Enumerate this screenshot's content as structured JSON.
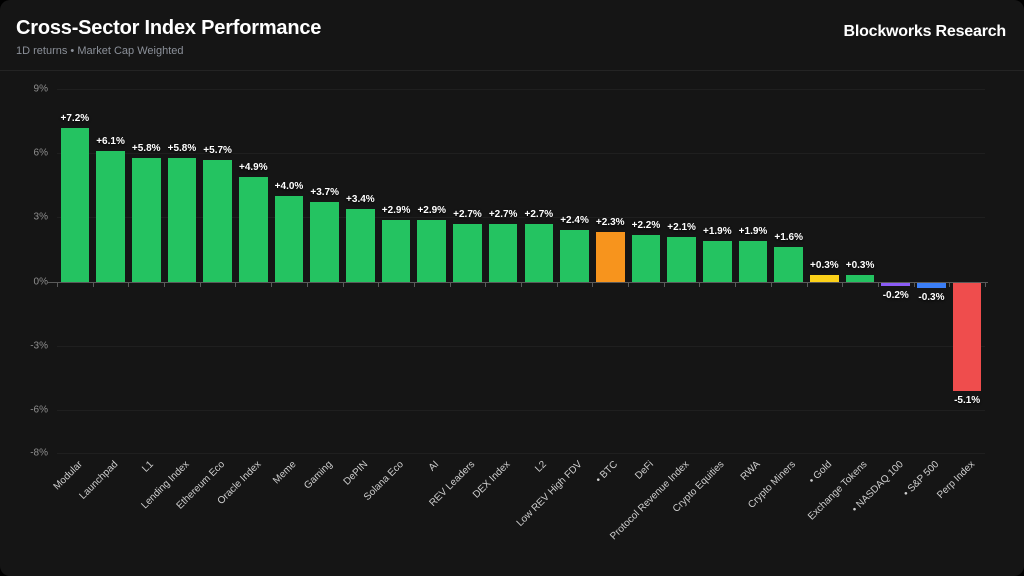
{
  "header": {
    "title": "Cross-Sector Index Performance",
    "subtitle": "1D returns • Market Cap Weighted",
    "brand": "Blockworks Research"
  },
  "colors": {
    "background": "#151515",
    "grid": "#1f1f1f",
    "axis": "#5a5a5a",
    "green": "#24c361",
    "orange": "#f7941d",
    "yellow": "#fcd119",
    "purple": "#8b5cf6",
    "blue": "#3b7ef6",
    "red": "#ef4d4d"
  },
  "chart_data": {
    "type": "bar",
    "title": "Cross-Sector Index Performance",
    "subtitle": "1D returns • Market Cap Weighted",
    "xlabel": "",
    "ylabel": "",
    "ylim": [
      -8,
      9
    ],
    "grid": true,
    "legend": false,
    "yticks": [
      {
        "value": 9,
        "label": "9%"
      },
      {
        "value": 6,
        "label": "6%"
      },
      {
        "value": 3,
        "label": "3%"
      },
      {
        "value": 0,
        "label": "0%"
      },
      {
        "value": -3,
        "label": "-3%"
      },
      {
        "value": -6,
        "label": "-6%"
      },
      {
        "value": -8,
        "label": "-8%"
      }
    ],
    "bars": [
      {
        "label": "Modular",
        "value": 7.2,
        "display": "+7.2%",
        "color": "#24c361",
        "dot": false
      },
      {
        "label": "Launchpad",
        "value": 6.1,
        "display": "+6.1%",
        "color": "#24c361",
        "dot": false
      },
      {
        "label": "L1",
        "value": 5.8,
        "display": "+5.8%",
        "color": "#24c361",
        "dot": false
      },
      {
        "label": "Lending Index",
        "value": 5.8,
        "display": "+5.8%",
        "color": "#24c361",
        "dot": false
      },
      {
        "label": "Ethereum Eco",
        "value": 5.7,
        "display": "+5.7%",
        "color": "#24c361",
        "dot": false
      },
      {
        "label": "Oracle Index",
        "value": 4.9,
        "display": "+4.9%",
        "color": "#24c361",
        "dot": false
      },
      {
        "label": "Meme",
        "value": 4.0,
        "display": "+4.0%",
        "color": "#24c361",
        "dot": false
      },
      {
        "label": "Gaming",
        "value": 3.7,
        "display": "+3.7%",
        "color": "#24c361",
        "dot": false
      },
      {
        "label": "DePIN",
        "value": 3.4,
        "display": "+3.4%",
        "color": "#24c361",
        "dot": false
      },
      {
        "label": "Solana Eco",
        "value": 2.9,
        "display": "+2.9%",
        "color": "#24c361",
        "dot": false
      },
      {
        "label": "AI",
        "value": 2.9,
        "display": "+2.9%",
        "color": "#24c361",
        "dot": false
      },
      {
        "label": "REV Leaders",
        "value": 2.7,
        "display": "+2.7%",
        "color": "#24c361",
        "dot": false
      },
      {
        "label": "DEX Index",
        "value": 2.7,
        "display": "+2.7%",
        "color": "#24c361",
        "dot": false
      },
      {
        "label": "L2",
        "value": 2.7,
        "display": "+2.7%",
        "color": "#24c361",
        "dot": false
      },
      {
        "label": "Low REV High FDV",
        "value": 2.4,
        "display": "+2.4%",
        "color": "#24c361",
        "dot": false
      },
      {
        "label": "BTC",
        "value": 2.3,
        "display": "+2.3%",
        "color": "#f7941d",
        "dot": true
      },
      {
        "label": "DeFi",
        "value": 2.2,
        "display": "+2.2%",
        "color": "#24c361",
        "dot": false
      },
      {
        "label": "Protocol Revenue Index",
        "value": 2.1,
        "display": "+2.1%",
        "color": "#24c361",
        "dot": false
      },
      {
        "label": "Crypto Equities",
        "value": 1.9,
        "display": "+1.9%",
        "color": "#24c361",
        "dot": false
      },
      {
        "label": "RWA",
        "value": 1.9,
        "display": "+1.9%",
        "color": "#24c361",
        "dot": false
      },
      {
        "label": "Crypto Miners",
        "value": 1.6,
        "display": "+1.6%",
        "color": "#24c361",
        "dot": false
      },
      {
        "label": "Gold",
        "value": 0.3,
        "display": "+0.3%",
        "color": "#fcd119",
        "dot": true
      },
      {
        "label": "Exchange Tokens",
        "value": 0.3,
        "display": "+0.3%",
        "color": "#24c361",
        "dot": false
      },
      {
        "label": "NASDAQ 100",
        "value": -0.2,
        "display": "-0.2%",
        "color": "#8b5cf6",
        "dot": true
      },
      {
        "label": "S&P 500",
        "value": -0.3,
        "display": "-0.3%",
        "color": "#3b7ef6",
        "dot": true
      },
      {
        "label": "Perp Index",
        "value": -5.1,
        "display": "-5.1%",
        "color": "#ef4d4d",
        "dot": false
      }
    ]
  }
}
